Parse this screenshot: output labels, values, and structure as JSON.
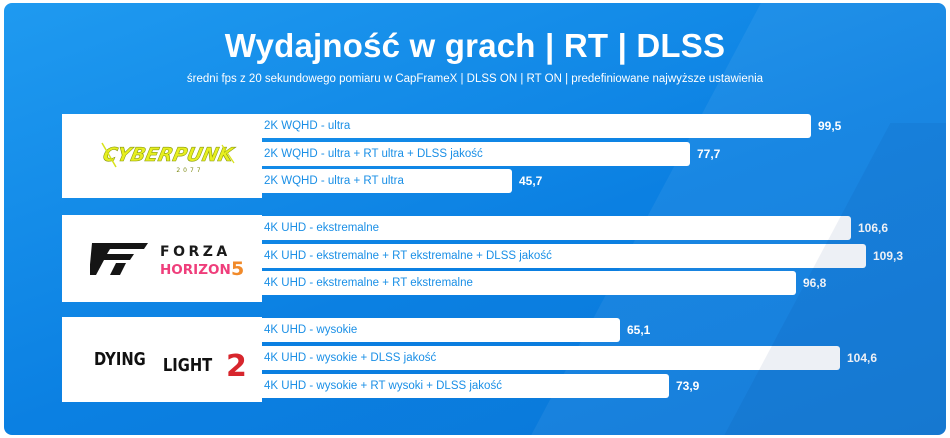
{
  "header": {
    "title": "Wydajność w grach | RT | DLSS",
    "subtitle": "średni fps z 20 sekundowego pomiaru w CapFrameX | DLSS ON | RT ON | predefiniowane najwyższe ustawienia"
  },
  "logos": {
    "cyberpunk": "CYBERPUNK",
    "cyberpunk_sub": "2077",
    "forza": "FORZA",
    "forza_sub": "HORIZON",
    "forza_num": "5",
    "dying": "DYING",
    "light": "LIGHT",
    "dl_num": "2"
  },
  "colors": {
    "background": "#0b80e2",
    "bar": "#ffffff",
    "bar_label": "#1a8fe6",
    "value": "#ffffff"
  },
  "chart_data": {
    "type": "bar",
    "orientation": "horizontal",
    "title": "Wydajność w grach | RT | DLSS",
    "subtitle": "średni fps z 20 sekundowego pomiaru w CapFrameX | DLSS ON | RT ON | predefiniowane najwyższe ustawienia",
    "xlim": [
      0,
      125
    ],
    "groups": [
      {
        "game": "Cyberpunk 2077",
        "bars": [
          {
            "label": "2K WQHD - ultra",
            "value": 99.5,
            "value_text": "99,5"
          },
          {
            "label": "2K WQHD - ultra + RT ultra + DLSS jakość",
            "value": 77.7,
            "value_text": "77,7"
          },
          {
            "label": "2K WQHD - ultra + RT ultra",
            "value": 45.7,
            "value_text": "45,7"
          }
        ]
      },
      {
        "game": "Forza Horizon 5",
        "bars": [
          {
            "label": "4K UHD - ekstremalne",
            "value": 106.6,
            "value_text": "106,6"
          },
          {
            "label": "4K UHD - ekstremalne + RT ekstremalne + DLSS jakość",
            "value": 109.3,
            "value_text": "109,3"
          },
          {
            "label": "4K UHD - ekstremalne + RT ekstremalne",
            "value": 96.8,
            "value_text": "96,8"
          }
        ]
      },
      {
        "game": "Dying Light 2",
        "bars": [
          {
            "label": "4K UHD - wysokie",
            "value": 65.1,
            "value_text": "65,1"
          },
          {
            "label": "4K UHD - wysokie + DLSS jakość",
            "value": 104.6,
            "value_text": "104,6"
          },
          {
            "label": "4K UHD - wysokie + RT wysoki + DLSS jakość",
            "value": 73.9,
            "value_text": "73,9"
          }
        ]
      }
    ]
  }
}
